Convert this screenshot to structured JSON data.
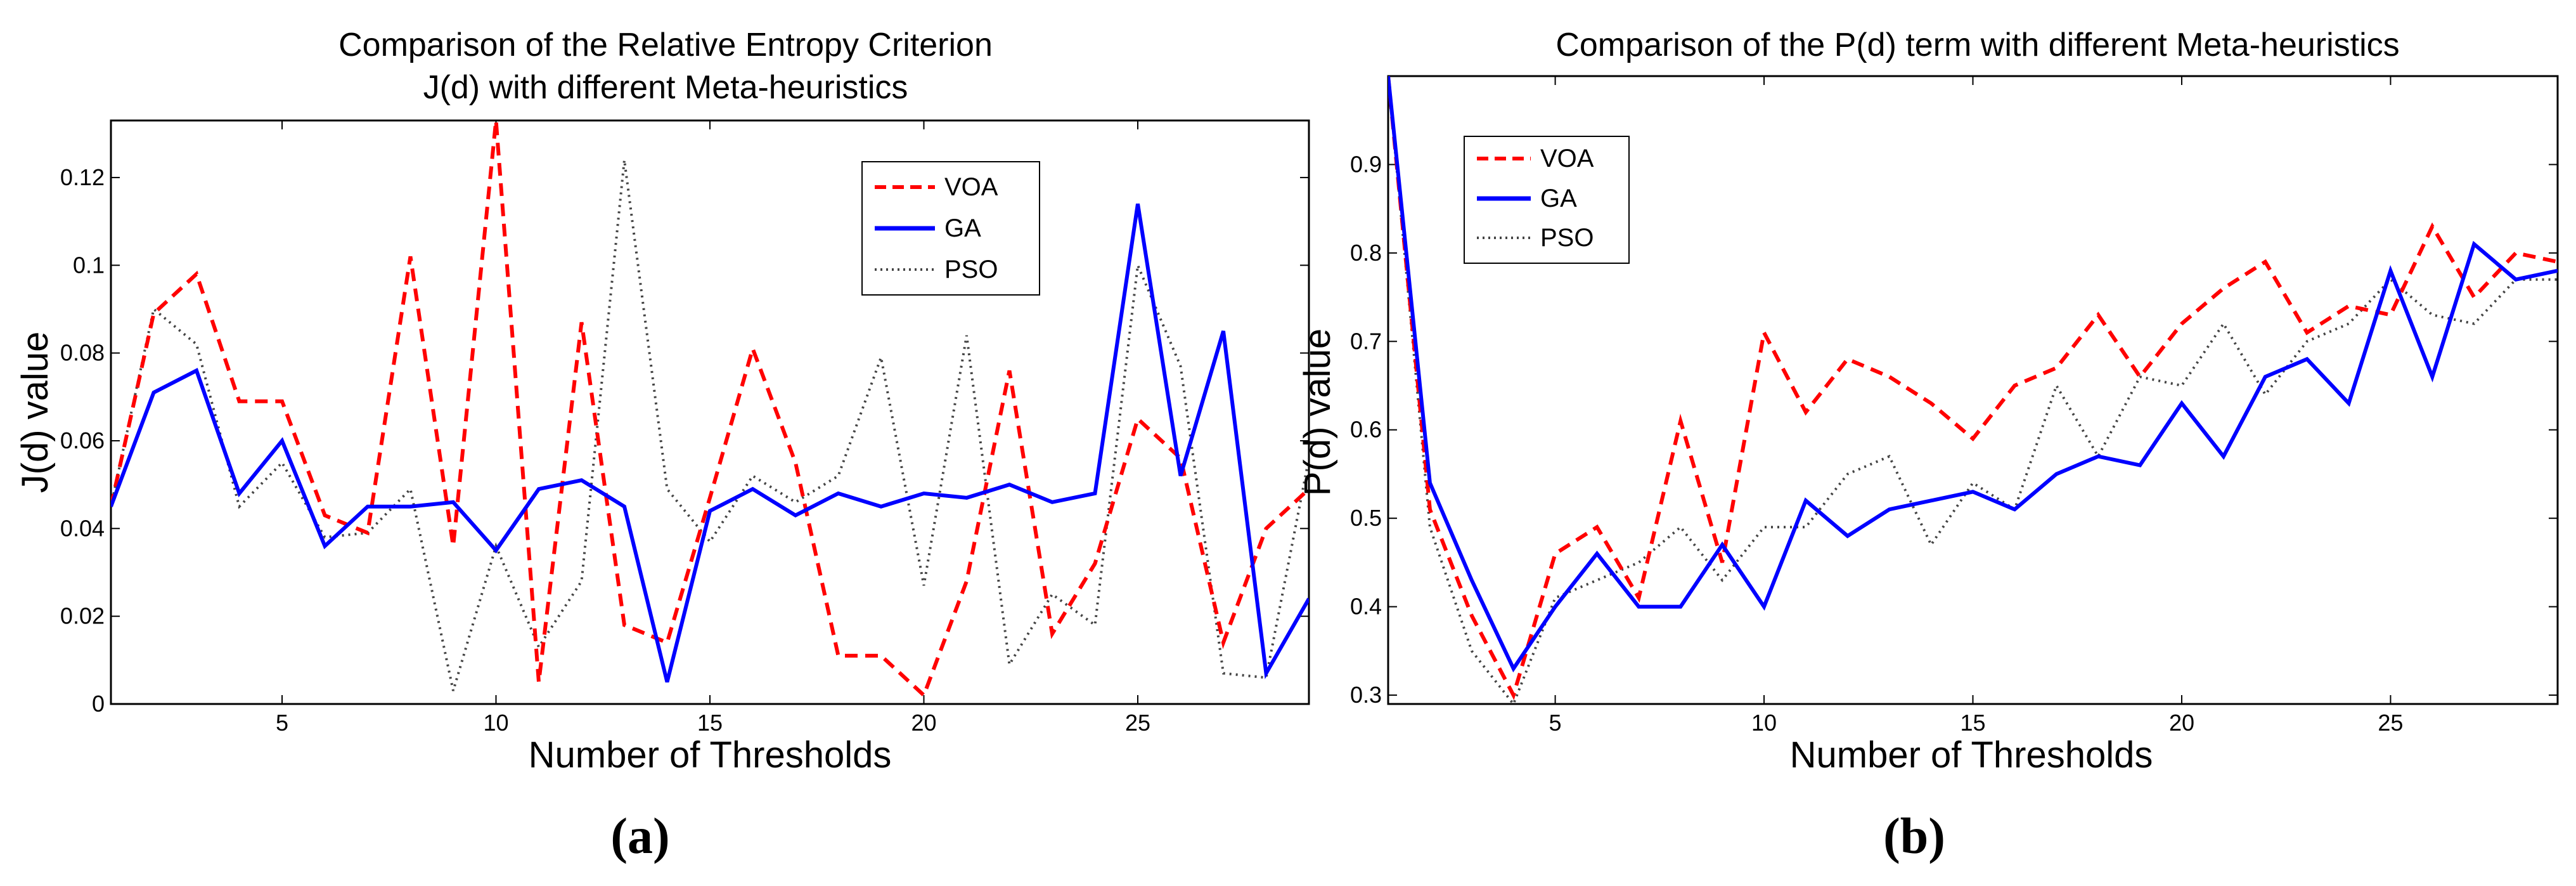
{
  "chart_data": [
    {
      "type": "line",
      "panel": "a",
      "caption": "(a)",
      "title": [
        "Comparison of the Relative Entropy Criterion",
        "J(d) with different Meta-heuristics"
      ],
      "xlabel": "Number of Thresholds",
      "ylabel": "J(d) value",
      "xlim": [
        1,
        29
      ],
      "ylim": [
        0,
        0.133
      ],
      "xticks": [
        5,
        10,
        15,
        20,
        25
      ],
      "yticks": [
        0,
        0.02,
        0.04,
        0.06,
        0.08,
        0.1,
        0.12
      ],
      "ytick_labels": [
        "0",
        "0.02",
        "0.04",
        "0.06",
        "0.08",
        "0.1",
        "0.12"
      ],
      "legend_position": "top-right",
      "x": [
        1,
        2,
        3,
        4,
        5,
        6,
        7,
        8,
        9,
        10,
        11,
        12,
        13,
        14,
        15,
        16,
        17,
        18,
        19,
        20,
        21,
        22,
        23,
        24,
        25,
        26,
        27,
        28,
        29
      ],
      "series": [
        {
          "name": "VOA",
          "color": "#ff0000",
          "style": "dashed",
          "values": [
            0.045,
            0.089,
            0.098,
            0.069,
            0.069,
            0.043,
            0.039,
            0.102,
            0.036,
            0.133,
            0.005,
            0.087,
            0.018,
            0.014,
            0.047,
            0.081,
            0.055,
            0.011,
            0.011,
            0.002,
            0.028,
            0.076,
            0.016,
            0.032,
            0.065,
            0.056,
            0.014,
            0.04,
            0.049
          ]
        },
        {
          "name": "GA",
          "color": "#0000ff",
          "style": "solid",
          "values": [
            0.045,
            0.071,
            0.076,
            0.048,
            0.06,
            0.036,
            0.045,
            0.045,
            0.046,
            0.035,
            0.049,
            0.051,
            0.045,
            0.005,
            0.044,
            0.049,
            0.043,
            0.048,
            0.045,
            0.048,
            0.047,
            0.05,
            0.046,
            0.048,
            0.114,
            0.052,
            0.085,
            0.007,
            0.024
          ]
        },
        {
          "name": "PSO",
          "color": "#444444",
          "style": "dotted",
          "values": [
            0.045,
            0.09,
            0.082,
            0.045,
            0.055,
            0.038,
            0.039,
            0.049,
            0.003,
            0.036,
            0.013,
            0.028,
            0.124,
            0.049,
            0.037,
            0.052,
            0.046,
            0.052,
            0.079,
            0.027,
            0.084,
            0.009,
            0.025,
            0.018,
            0.1,
            0.077,
            0.007,
            0.006,
            0.056
          ]
        }
      ]
    },
    {
      "type": "line",
      "panel": "b",
      "caption": "(b)",
      "title": [
        "Comparison of the P(d) term with different Meta-heuristics"
      ],
      "xlabel": "Number of Thresholds",
      "ylabel": "P(d) value",
      "xlim": [
        1,
        29
      ],
      "ylim": [
        0.29,
        1.0
      ],
      "xticks": [
        5,
        10,
        15,
        20,
        25
      ],
      "yticks": [
        0.3,
        0.4,
        0.5,
        0.6,
        0.7,
        0.8,
        0.9
      ],
      "ytick_labels": [
        "0.3",
        "0.4",
        "0.5",
        "0.6",
        "0.7",
        "0.8",
        "0.9"
      ],
      "legend_position": "top-left",
      "x": [
        1,
        2,
        3,
        4,
        5,
        6,
        7,
        8,
        9,
        10,
        11,
        12,
        13,
        14,
        15,
        16,
        17,
        18,
        19,
        20,
        21,
        22,
        23,
        24,
        25,
        26,
        27,
        28,
        29
      ],
      "series": [
        {
          "name": "VOA",
          "color": "#ff0000",
          "style": "dashed",
          "values": [
            1.0,
            0.51,
            0.39,
            0.3,
            0.46,
            0.49,
            0.41,
            0.61,
            0.45,
            0.71,
            0.62,
            0.68,
            0.66,
            0.63,
            0.59,
            0.65,
            0.67,
            0.73,
            0.66,
            0.72,
            0.76,
            0.79,
            0.71,
            0.74,
            0.73,
            0.83,
            0.75,
            0.8,
            0.79
          ]
        },
        {
          "name": "GA",
          "color": "#0000ff",
          "style": "solid",
          "values": [
            1.0,
            0.54,
            0.43,
            0.33,
            0.4,
            0.46,
            0.4,
            0.4,
            0.47,
            0.4,
            0.52,
            0.48,
            0.51,
            0.52,
            0.53,
            0.51,
            0.55,
            0.57,
            0.56,
            0.63,
            0.57,
            0.66,
            0.68,
            0.63,
            0.78,
            0.66,
            0.81,
            0.77,
            0.78
          ]
        },
        {
          "name": "PSO",
          "color": "#444444",
          "style": "dotted",
          "values": [
            1.0,
            0.49,
            0.35,
            0.29,
            0.41,
            0.43,
            0.45,
            0.49,
            0.43,
            0.49,
            0.49,
            0.55,
            0.57,
            0.47,
            0.54,
            0.51,
            0.65,
            0.57,
            0.66,
            0.65,
            0.72,
            0.64,
            0.7,
            0.72,
            0.77,
            0.73,
            0.72,
            0.77,
            0.77
          ]
        }
      ]
    }
  ]
}
